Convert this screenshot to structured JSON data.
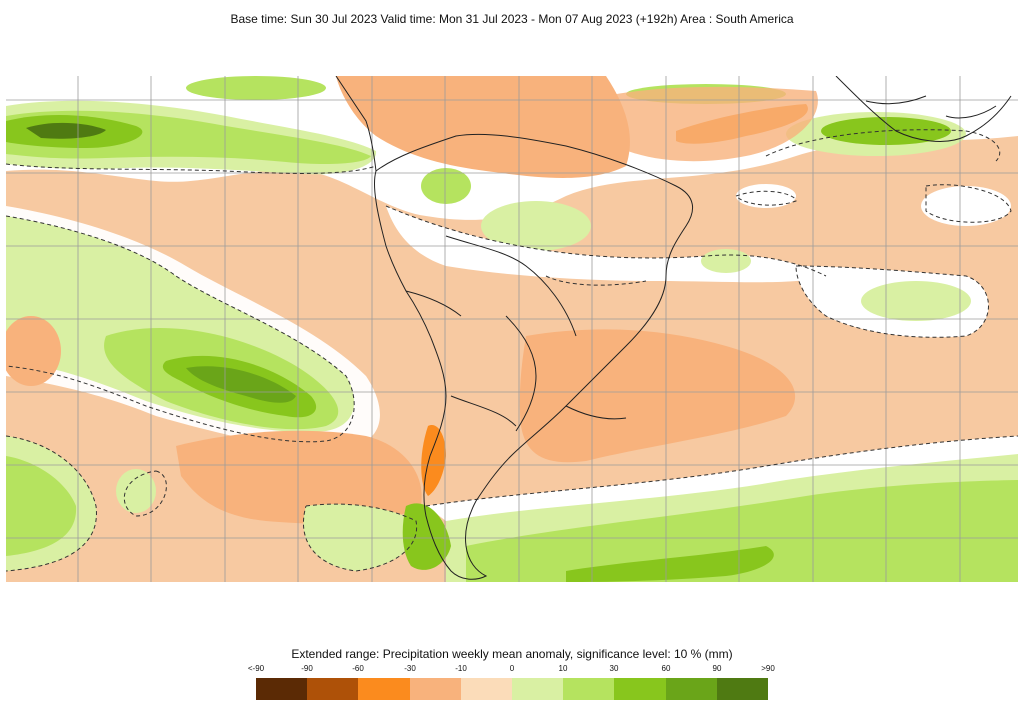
{
  "header": {
    "title": "Base time: Sun 30 Jul 2023 Valid time: Mon 31 Jul 2023 - Mon 07 Aug 2023 (+192h) Area : South America"
  },
  "map": {
    "colors": {
      "background_anomaly": "#f7c9a1",
      "neutral": "#ffffff",
      "dry_light": "#f8b27c",
      "dry_mid": "#fb8b1e",
      "wet_light": "#d9f0a3",
      "wet_mid": "#b5e35f",
      "wet_strong": "#88c61d",
      "wet_darker": "#6aa519",
      "wet_darkest": "#4f7a12",
      "coast": "#222222",
      "grid": "#9b9b9b"
    }
  },
  "legend": {
    "title": "Extended range: Precipitation weekly mean anomaly, significance level: 10 % (mm)",
    "labels": [
      "<-90",
      "-90",
      "-60",
      "-30",
      "-10",
      "0",
      "10",
      "30",
      "60",
      "90",
      ">90"
    ],
    "colors": [
      "#5b2a05",
      "#ae5108",
      "#fb8b1e",
      "#f8b27c",
      "#fbdcb9",
      "#ffffff",
      "#d9f0a3",
      "#b5e35f",
      "#88c61d",
      "#6aa519",
      "#4f7a12"
    ]
  }
}
